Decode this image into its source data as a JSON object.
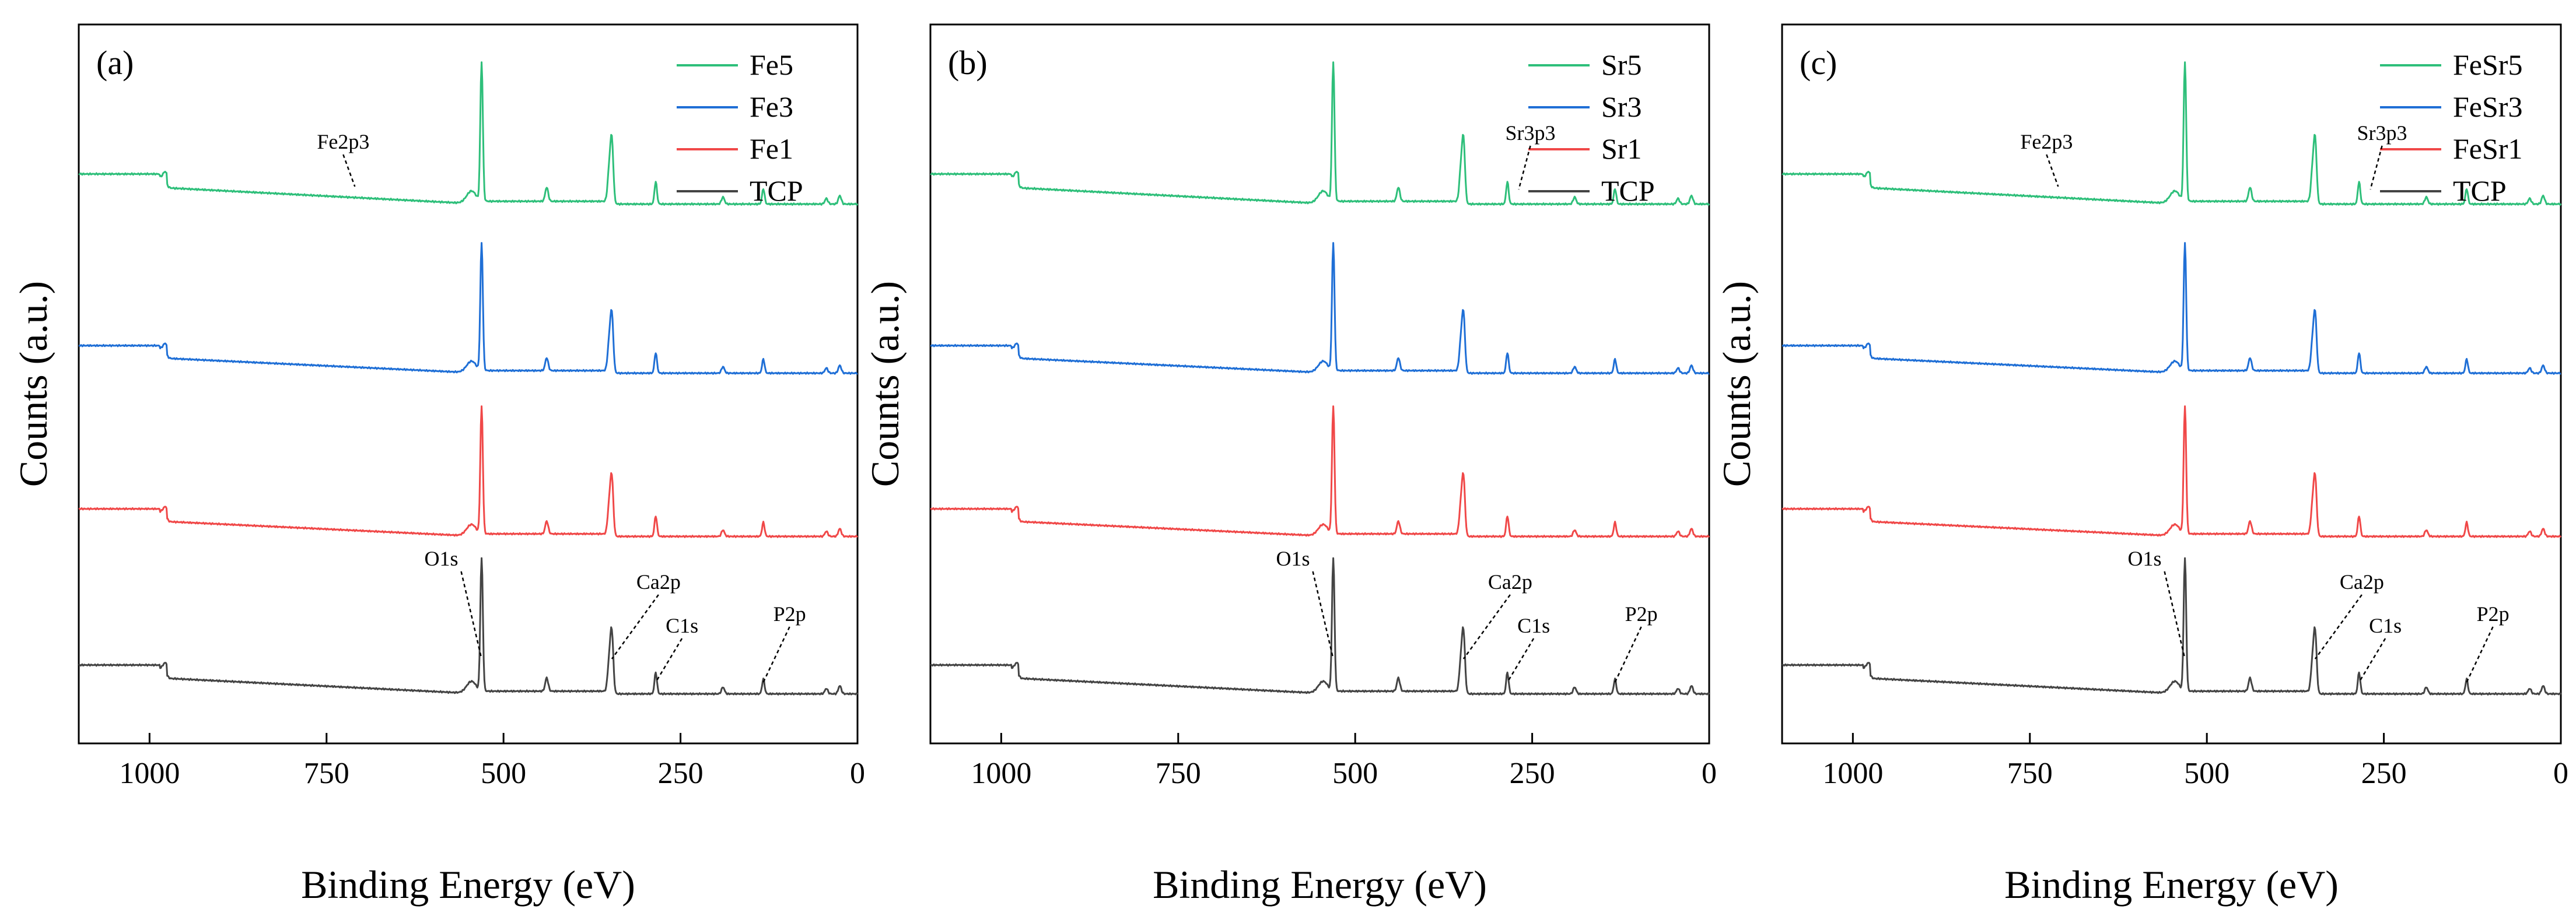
{
  "chart_data": [
    {
      "type": "line",
      "panel_label": "(a)",
      "xlabel": "Binding Energy (eV)",
      "ylabel": "Counts (a.u.)",
      "xlim": [
        1100,
        0
      ],
      "x_ticks": [
        1000,
        750,
        500,
        250,
        0
      ],
      "x_reversed": true,
      "legend_position": "top-right",
      "series": [
        {
          "name": "Fe5",
          "color": "#2ebf7a",
          "offset": 3
        },
        {
          "name": "Fe3",
          "color": "#1f6fd6",
          "offset": 2
        },
        {
          "name": "Fe1",
          "color": "#f04848",
          "offset": 1
        },
        {
          "name": "TCP",
          "color": "#444444",
          "offset": 0
        }
      ],
      "annotations": [
        {
          "text": "Fe2p3",
          "x": 710,
          "series": "Fe5"
        },
        {
          "text": "O1s",
          "x": 531,
          "series": "TCP"
        },
        {
          "text": "Ca2p",
          "x": 347,
          "series": "TCP"
        },
        {
          "text": "C1s",
          "x": 285,
          "series": "TCP"
        },
        {
          "text": "P2p",
          "x": 133,
          "series": "TCP"
        }
      ]
    },
    {
      "type": "line",
      "panel_label": "(b)",
      "xlabel": "Binding Energy (eV)",
      "ylabel": "Counts (a.u.)",
      "xlim": [
        1100,
        0
      ],
      "x_ticks": [
        1000,
        750,
        500,
        250,
        0
      ],
      "x_reversed": true,
      "legend_position": "top-right",
      "series": [
        {
          "name": "Sr5",
          "color": "#2ebf7a",
          "offset": 3
        },
        {
          "name": "Sr3",
          "color": "#1f6fd6",
          "offset": 2
        },
        {
          "name": "Sr1",
          "color": "#f04848",
          "offset": 1
        },
        {
          "name": "TCP",
          "color": "#444444",
          "offset": 0
        }
      ],
      "annotations": [
        {
          "text": "Sr3p3",
          "x": 269,
          "series": "Sr5"
        },
        {
          "text": "O1s",
          "x": 531,
          "series": "TCP"
        },
        {
          "text": "Ca2p",
          "x": 347,
          "series": "TCP"
        },
        {
          "text": "C1s",
          "x": 285,
          "series": "TCP"
        },
        {
          "text": "P2p",
          "x": 133,
          "series": "TCP"
        }
      ]
    },
    {
      "type": "line",
      "panel_label": "(c)",
      "xlabel": "Binding Energy (eV)",
      "ylabel": "Counts (a.u.)",
      "xlim": [
        1100,
        0
      ],
      "x_ticks": [
        1000,
        750,
        500,
        250,
        0
      ],
      "x_reversed": true,
      "legend_position": "top-right",
      "series": [
        {
          "name": "FeSr5",
          "color": "#2ebf7a",
          "offset": 3
        },
        {
          "name": "FeSr3",
          "color": "#1f6fd6",
          "offset": 2
        },
        {
          "name": "FeSr1",
          "color": "#f04848",
          "offset": 1
        },
        {
          "name": "TCP",
          "color": "#444444",
          "offset": 0
        }
      ],
      "annotations": [
        {
          "text": "Fe2p3",
          "x": 710,
          "series": "FeSr5"
        },
        {
          "text": "Sr3p3",
          "x": 269,
          "series": "FeSr5"
        },
        {
          "text": "O1s",
          "x": 531,
          "series": "TCP"
        },
        {
          "text": "Ca2p",
          "x": 347,
          "series": "TCP"
        },
        {
          "text": "C1s",
          "x": 285,
          "series": "TCP"
        },
        {
          "text": "P2p",
          "x": 133,
          "series": "TCP"
        }
      ]
    }
  ]
}
